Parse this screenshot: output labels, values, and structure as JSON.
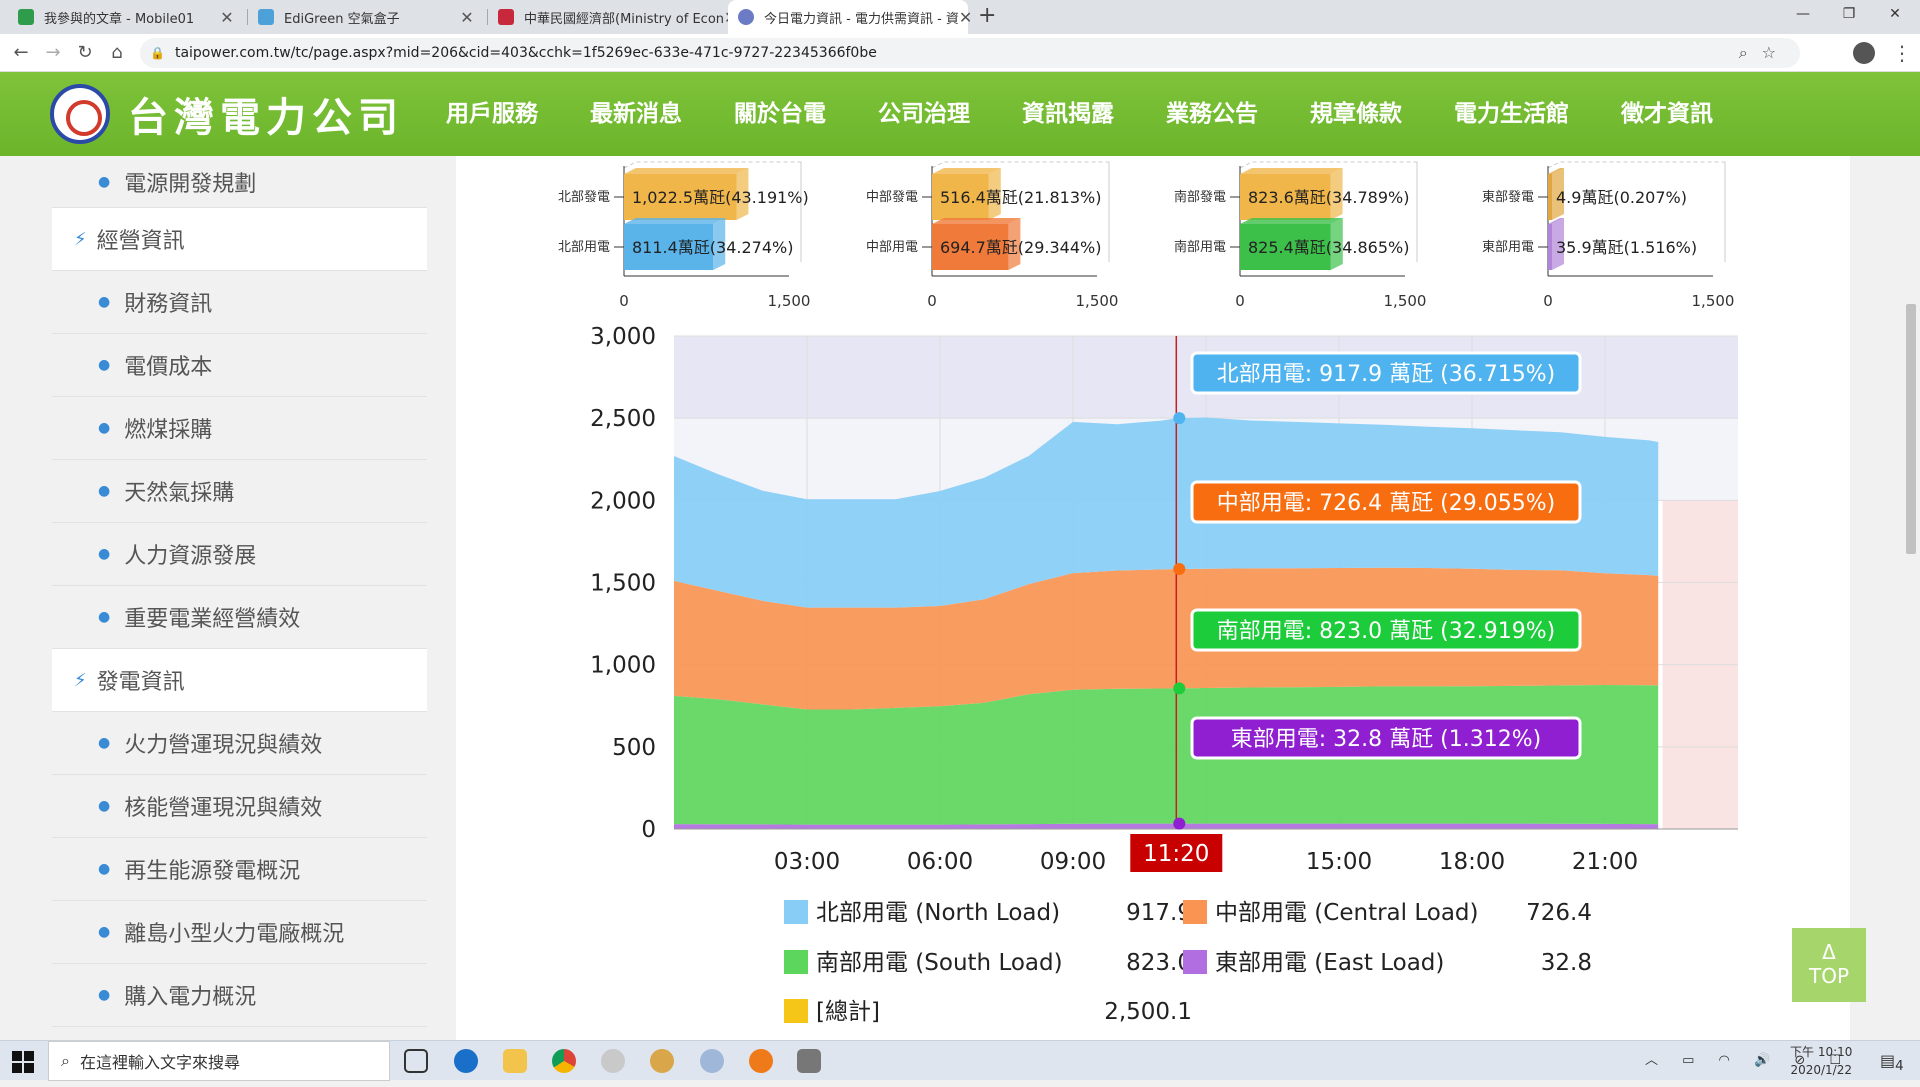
{
  "browser": {
    "tabs": [
      {
        "title": "我參與的文章 - Mobile01",
        "color": "#2e9c4b"
      },
      {
        "title": "EdiGreen 空氣盒子",
        "color": "#4ea1d8"
      },
      {
        "title": "中華民國經濟部(Ministry of Econ",
        "color": "#c8283c"
      },
      {
        "title": "今日電力資訊 - 電力供需資訊 - 資",
        "color": "#6b7bc6"
      }
    ],
    "new_tab": "+",
    "url": "taipower.com.tw/tc/page.aspx?mid=206&cid=403&cchk=1f5269ec-633e-471c-9727-22345366f0be"
  },
  "site": {
    "logo_text": "台灣電力公司",
    "menu": [
      "用戶服務",
      "最新消息",
      "關於台電",
      "公司治理",
      "資訊揭露",
      "業務公告",
      "規章條款",
      "電力生活館",
      "徵才資訊"
    ],
    "active_menu": 4
  },
  "sidebar": {
    "items": [
      {
        "type": "sub",
        "label": "電源開發規劃"
      },
      {
        "type": "cat",
        "label": "經營資訊"
      },
      {
        "type": "sub",
        "label": "財務資訊"
      },
      {
        "type": "sub",
        "label": "電價成本"
      },
      {
        "type": "sub",
        "label": "燃煤採購"
      },
      {
        "type": "sub",
        "label": "天然氣採購"
      },
      {
        "type": "sub",
        "label": "人力資源發展"
      },
      {
        "type": "sub",
        "label": "重要電業經營績效"
      },
      {
        "type": "cat",
        "label": "發電資訊"
      },
      {
        "type": "sub",
        "label": "火力營運現況與績效"
      },
      {
        "type": "sub",
        "label": "核能營運現況與績效"
      },
      {
        "type": "sub",
        "label": "再生能源發電概況"
      },
      {
        "type": "sub",
        "label": "離島小型火力電廠概況"
      },
      {
        "type": "sub",
        "label": "購入電力概況"
      }
    ]
  },
  "chart_data": [
    {
      "type": "bar",
      "region_charts": [
        {
          "gen_label": "北部發電",
          "load_label": "北部用電",
          "gen": 1022.5,
          "gen_text": "1,022.5萬瓩(43.191%)",
          "load": 811.4,
          "load_text": "811.4萬瓩(34.274%)",
          "gen_color": "#f0b64a",
          "load_color": "#5ab4ea"
        },
        {
          "gen_label": "中部發電",
          "load_label": "中部用電",
          "gen": 516.4,
          "gen_text": "516.4萬瓩(21.813%)",
          "load": 694.7,
          "load_text": "694.7萬瓩(29.344%)",
          "gen_color": "#f0b64a",
          "load_color": "#f07a3a"
        },
        {
          "gen_label": "南部發電",
          "load_label": "南部用電",
          "gen": 823.6,
          "gen_text": "823.6萬瓩(34.789%)",
          "load": 825.4,
          "load_text": "825.4萬瓩(34.865%)",
          "gen_color": "#f0b64a",
          "load_color": "#3cc04a"
        },
        {
          "gen_label": "東部發電",
          "load_label": "東部用電",
          "gen": 4.9,
          "gen_text": "4.9萬瓩(0.207%)",
          "load": 35.9,
          "load_text": "35.9萬瓩(1.516%)",
          "gen_color": "#e0a640",
          "load_color": "#b084d8"
        }
      ],
      "x_ticks": [
        "0",
        "1,500"
      ],
      "xlim": [
        0,
        1500
      ]
    },
    {
      "type": "area",
      "y_ticks": [
        "0",
        "500",
        "1,000",
        "1,500",
        "2,000",
        "2,500",
        "3,000"
      ],
      "ylim": [
        0,
        3000
      ],
      "x_ticks": [
        "03:00",
        "06:00",
        "09:00",
        "15:00",
        "18:00",
        "21:00"
      ],
      "x_tick_hours": [
        3,
        6,
        9,
        15,
        18,
        21
      ],
      "xlim_hours": [
        0,
        24
      ],
      "cursor_label": "11:20",
      "cursor_hour": 11.33,
      "hours": [
        0,
        1,
        2,
        3,
        4,
        5,
        6,
        7,
        8,
        9,
        10,
        11,
        11.33,
        12,
        13,
        14,
        15,
        16,
        17,
        18,
        19,
        20,
        21,
        22,
        22.2
      ],
      "series": [
        {
          "name": "東部用電 (East Load)",
          "color": "#b06ee0",
          "values": [
            30,
            29,
            28,
            27,
            27,
            27,
            27,
            28,
            30,
            32,
            33,
            33,
            32.8,
            33,
            33,
            33,
            33,
            33,
            33,
            33,
            33,
            32,
            31,
            30,
            30
          ]
        },
        {
          "name": "南部用電 (South Load)",
          "color": "#5dd65d",
          "values": [
            780,
            760,
            730,
            700,
            700,
            710,
            720,
            740,
            790,
            815,
            820,
            822,
            823.0,
            825,
            828,
            830,
            832,
            835,
            835,
            836,
            838,
            842,
            845,
            845,
            845
          ]
        },
        {
          "name": "中部用電 (Central Load)",
          "color": "#f99452",
          "values": [
            700,
            660,
            630,
            620,
            620,
            610,
            610,
            630,
            670,
            710,
            720,
            725,
            726.4,
            726,
            725,
            724,
            723,
            722,
            720,
            715,
            705,
            700,
            680,
            670,
            665
          ]
        },
        {
          "name": "北部用電 (North Load)",
          "color": "#87cdf6",
          "values": [
            760,
            710,
            670,
            660,
            660,
            660,
            700,
            740,
            780,
            920,
            890,
            905,
            917.9,
            920,
            900,
            890,
            880,
            870,
            860,
            855,
            850,
            840,
            830,
            820,
            815
          ]
        }
      ],
      "tooltips": [
        {
          "text": "北部用電: 917.9 萬瓩 (36.715%)",
          "value": 2500.1,
          "bg": "#4eb3ef"
        },
        {
          "text": "中部用電: 726.4 萬瓩 (29.055%)",
          "value": 1582.2,
          "bg": "#f86d10"
        },
        {
          "text": "南部用電: 823.0 萬瓩 (32.919%)",
          "value": 855.8,
          "bg": "#1dcc3a"
        },
        {
          "text": "東部用電: 32.8 萬瓩 (1.312%)",
          "value": 32.8,
          "bg": "#8f1fd0"
        }
      ],
      "legend": [
        {
          "label": "北部用電 (North Load)",
          "value": "917.9",
          "color": "#87cdf6"
        },
        {
          "label": "中部用電 (Central Load)",
          "value": "726.4",
          "color": "#f99452"
        },
        {
          "label": "南部用電 (South Load)",
          "value": "823.0",
          "color": "#5dd65d"
        },
        {
          "label": "東部用電 (East Load)",
          "value": "32.8",
          "color": "#b06ee0"
        },
        {
          "label": "[總計]",
          "value": "2,500.1",
          "color": "#f5c518"
        }
      ]
    }
  ],
  "top_button": {
    "arrow": "Δ",
    "label": "TOP"
  },
  "taskbar": {
    "search_placeholder": "在這裡輸入文字來搜尋",
    "time": "下午 10:10",
    "date": "2020/1/22",
    "notification_count": "4"
  }
}
